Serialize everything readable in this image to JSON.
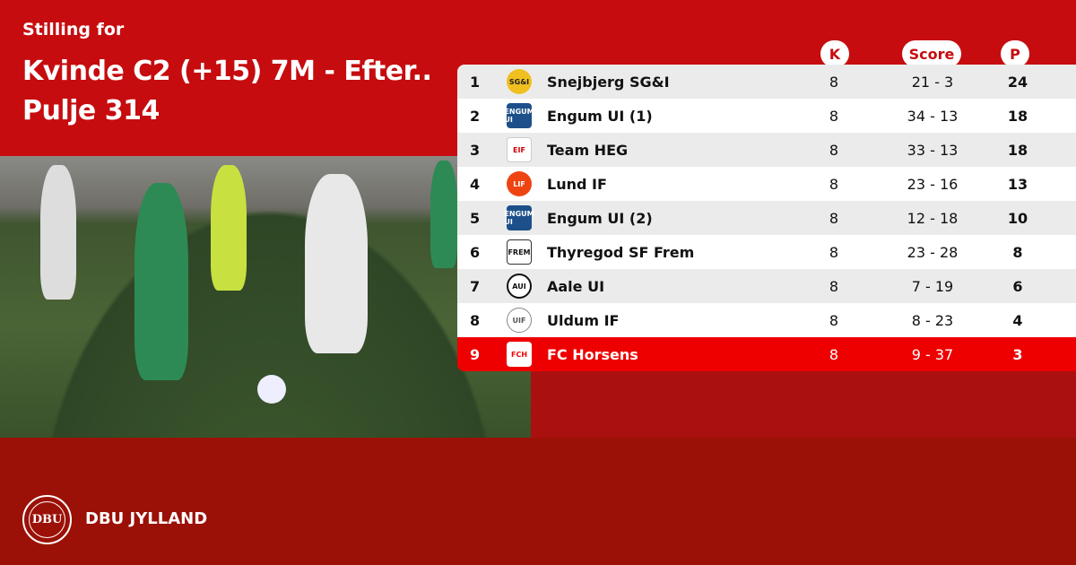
{
  "header": {
    "subtitle": "Stilling for",
    "title_line1": "Kvinde C2 (+15) 7M - Efter..",
    "title_line2": "Pulje 314"
  },
  "columns": {
    "k": "K",
    "score": "Score",
    "p": "P"
  },
  "colors": {
    "primary": "#c60c0f",
    "highlight": "#ee0000",
    "footer": "#9b1107"
  },
  "rows": [
    {
      "pos": "1",
      "team": "Snejbjerg SG&I",
      "logo": "SG&I",
      "k": "8",
      "score": "21 - 3",
      "p": "24"
    },
    {
      "pos": "2",
      "team": "Engum UI (1)",
      "logo": "ENGUM UI",
      "k": "8",
      "score": "34 - 13",
      "p": "18"
    },
    {
      "pos": "3",
      "team": "Team HEG",
      "logo": "EIF",
      "k": "8",
      "score": "33 - 13",
      "p": "18"
    },
    {
      "pos": "4",
      "team": "Lund IF",
      "logo": "LIF",
      "k": "8",
      "score": "23 - 16",
      "p": "13"
    },
    {
      "pos": "5",
      "team": "Engum UI (2)",
      "logo": "ENGUM UI",
      "k": "8",
      "score": "12 - 18",
      "p": "10"
    },
    {
      "pos": "6",
      "team": "Thyregod SF Frem",
      "logo": "FREM",
      "k": "8",
      "score": "23 - 28",
      "p": "8"
    },
    {
      "pos": "7",
      "team": "Aale UI",
      "logo": "AUI",
      "k": "8",
      "score": "7 - 19",
      "p": "6"
    },
    {
      "pos": "8",
      "team": "Uldum IF",
      "logo": "UIF",
      "k": "8",
      "score": "8 - 23",
      "p": "4"
    },
    {
      "pos": "9",
      "team": "FC Horsens",
      "logo": "FCH",
      "k": "8",
      "score": "9 - 37",
      "p": "3"
    }
  ],
  "footer": {
    "brand": "DBU JYLLAND",
    "logo_text": "DBU"
  }
}
